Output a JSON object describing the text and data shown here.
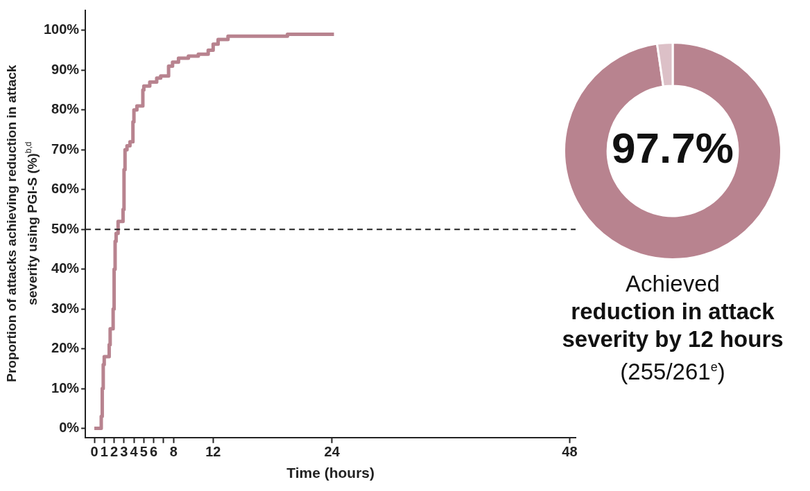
{
  "chart_data": [
    {
      "type": "step",
      "xlabel": "Time (hours)",
      "ylabel": "Proportion of attacks achieving reduction in attack severity using PGI-S (%)$^{b,d}$",
      "x": [
        0,
        0.7,
        0.8,
        0.9,
        1.0,
        1.1,
        1.5,
        1.6,
        1.9,
        2.0,
        2.1,
        2.2,
        2.4,
        2.9,
        3.0,
        3.1,
        3.3,
        3.6,
        3.9,
        4.0,
        4.3,
        4.9,
        5.0,
        5.6,
        6.3,
        6.7,
        7.5,
        7.9,
        8.5,
        9.5,
        10.5,
        11.5,
        12.0,
        12.5,
        13.5,
        19.5,
        24.2
      ],
      "series": [
        {
          "color": "#b8838f",
          "values": [
            0,
            0,
            3,
            10,
            16,
            18,
            18,
            21,
            25,
            30,
            40,
            47,
            49,
            52,
            55,
            65,
            70,
            71,
            72,
            77,
            80,
            81,
            85,
            86,
            87,
            88,
            88.5,
            91,
            92,
            93,
            93.5,
            94,
            95,
            96.5,
            97.7,
            98.5,
            99
          ]
        }
      ],
      "xlim": [
        -0.9,
        48.6
      ],
      "xticks": [
        0,
        1,
        2,
        3,
        4,
        5,
        6,
        {
          "value": 7,
          "label": null
        },
        8,
        12,
        24,
        48
      ],
      "ylim": [
        -2.3,
        105
      ],
      "yticks": [
        {
          "value": 0,
          "label": "0%"
        },
        {
          "value": 10,
          "label": "10%"
        },
        {
          "value": 20,
          "label": "20%"
        },
        {
          "value": 30,
          "label": "30%"
        },
        {
          "value": 40,
          "label": "40%"
        },
        {
          "value": 50,
          "label": "50%"
        },
        {
          "value": 60,
          "label": "60%"
        },
        {
          "value": 70,
          "label": "70%"
        },
        {
          "value": 80,
          "label": "80%"
        },
        {
          "value": 90,
          "label": "90%"
        },
        {
          "value": 100,
          "label": "100%"
        }
      ],
      "ref_lines": [
        {
          "axis": "y",
          "value": 50,
          "line_style": "dashed",
          "color": "#222222"
        }
      ],
      "grid": false,
      "legend": false,
      "marker": "none",
      "line_style": "solid"
    },
    {
      "type": "donut",
      "categories": [
        null,
        null
      ],
      "values": [
        97.7,
        2.3
      ],
      "colors": [
        "#b8838f",
        "#dcc0c7"
      ],
      "legend": false,
      "annotations": [
        "97.7%",
        "Achieved",
        "reduction in attack severity by 12 hours",
        "(255/261$^{e}$)"
      ]
    }
  ]
}
